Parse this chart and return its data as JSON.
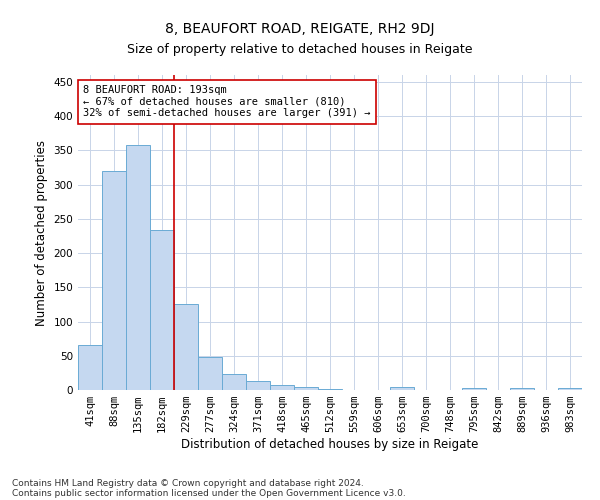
{
  "title": "8, BEAUFORT ROAD, REIGATE, RH2 9DJ",
  "subtitle": "Size of property relative to detached houses in Reigate",
  "xlabel": "Distribution of detached houses by size in Reigate",
  "ylabel": "Number of detached properties",
  "categories": [
    "41sqm",
    "88sqm",
    "135sqm",
    "182sqm",
    "229sqm",
    "277sqm",
    "324sqm",
    "371sqm",
    "418sqm",
    "465sqm",
    "512sqm",
    "559sqm",
    "606sqm",
    "653sqm",
    "700sqm",
    "748sqm",
    "795sqm",
    "842sqm",
    "889sqm",
    "936sqm",
    "983sqm"
  ],
  "values": [
    65,
    320,
    358,
    234,
    125,
    48,
    23,
    13,
    8,
    5,
    1,
    0,
    0,
    4,
    0,
    0,
    3,
    0,
    3,
    0,
    3
  ],
  "bar_color": "#c5d8f0",
  "bar_edge_color": "#6aaad4",
  "property_line_x": 3.5,
  "property_line_color": "#cc0000",
  "annotation_line1": "8 BEAUFORT ROAD: 193sqm",
  "annotation_line2": "← 67% of detached houses are smaller (810)",
  "annotation_line3": "32% of semi-detached houses are larger (391) →",
  "annotation_box_color": "#ffffff",
  "annotation_box_edge_color": "#cc0000",
  "ylim": [
    0,
    460
  ],
  "yticks": [
    0,
    50,
    100,
    150,
    200,
    250,
    300,
    350,
    400,
    450
  ],
  "footer_line1": "Contains HM Land Registry data © Crown copyright and database right 2024.",
  "footer_line2": "Contains public sector information licensed under the Open Government Licence v3.0.",
  "bg_color": "#ffffff",
  "grid_color": "#c8d4e8",
  "title_fontsize": 10,
  "subtitle_fontsize": 9,
  "axis_label_fontsize": 8.5,
  "tick_fontsize": 7.5,
  "annotation_fontsize": 7.5,
  "footer_fontsize": 6.5
}
